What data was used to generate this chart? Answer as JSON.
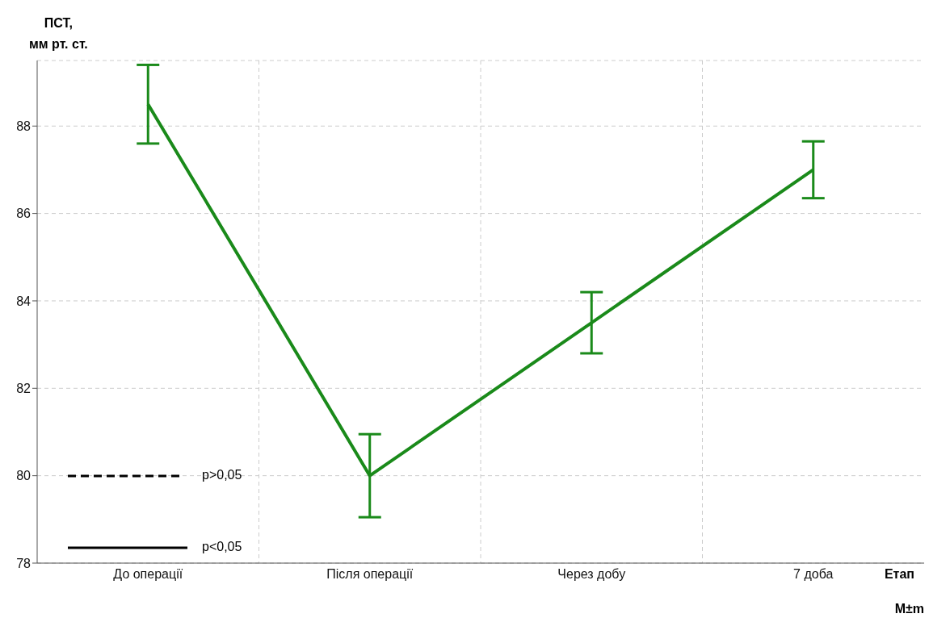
{
  "chart_data": {
    "type": "line",
    "ylabel": "ПСТ,\nмм рт. ст.",
    "xlabel": "Етап",
    "categories": [
      "До операції",
      "Після операції",
      "Через добу",
      "7 доба"
    ],
    "series": [
      {
        "color": "#1a8a1a",
        "values": [
          88.5,
          80.0,
          83.5,
          87.0
        ],
        "errors": [
          0.9,
          0.95,
          0.7,
          0.65
        ]
      }
    ],
    "ylim": [
      78,
      89.5
    ],
    "yticks": [
      78,
      80,
      82,
      84,
      86,
      88
    ],
    "grid": true,
    "marker": "none",
    "line_style": "solid",
    "annotations": [
      "p>0,05",
      "p<0,05",
      "M±m"
    ]
  }
}
